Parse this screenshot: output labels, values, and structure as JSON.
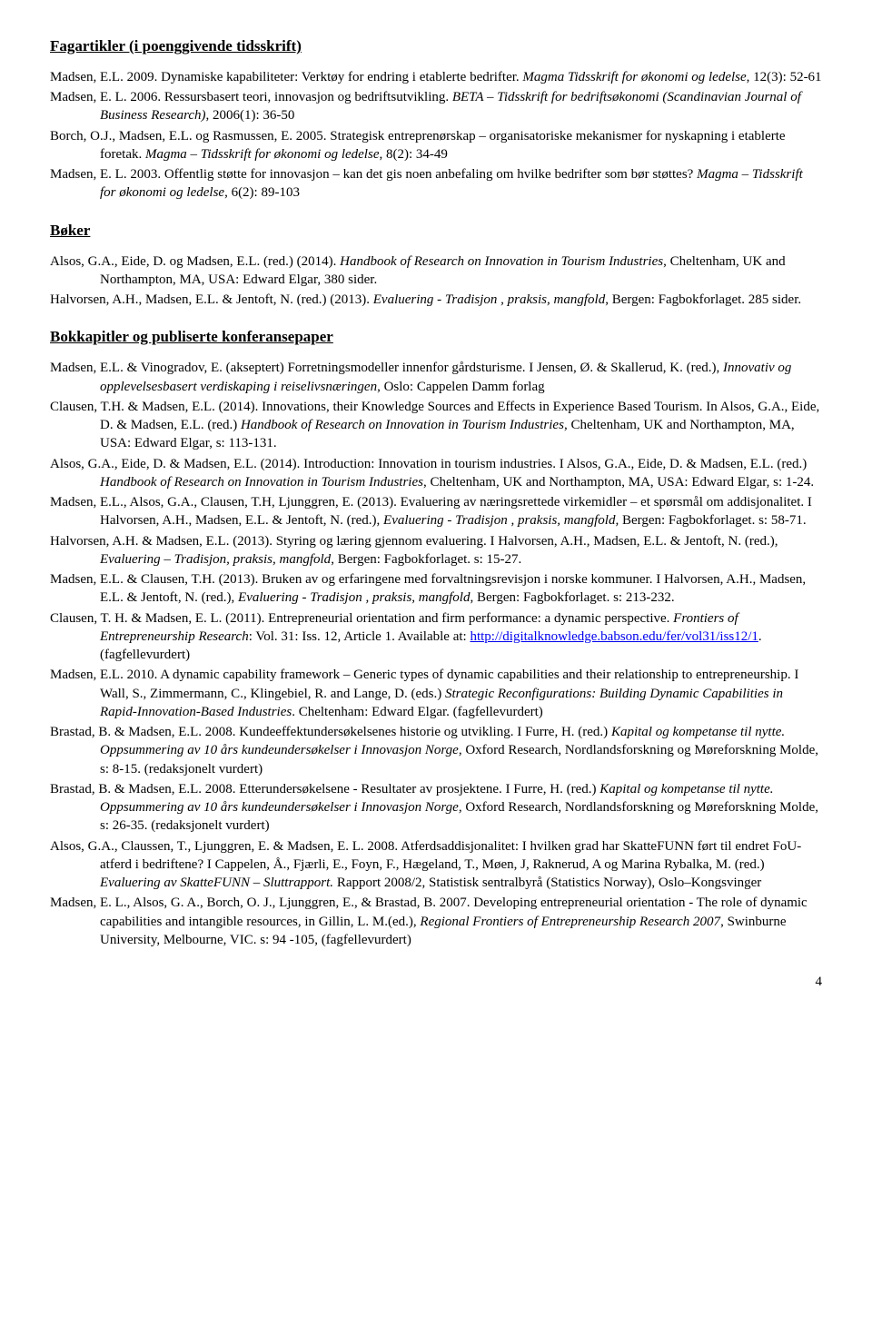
{
  "section1": {
    "heading": "Fagartikler (i poenggivende tidsskrift)",
    "entries": [
      {
        "html": "Madsen, E.L. 2009. Dynamiske kapabiliteter: Verktøy for endring i etablerte bedrifter. <span class='italic'>Magma Tidsskrift for økonomi og ledelse</span>, 12(3): 52-61"
      },
      {
        "html": "Madsen, E. L. 2006. Ressursbasert teori, innovasjon og bedriftsutvikling. <span class='italic'>BETA – Tidsskrift for bedriftsøkonomi (Scandinavian Journal of Business Research)</span>, 2006(1): 36-50"
      },
      {
        "html": "Borch, O.J., Madsen, E.L. og Rasmussen, E. 2005. Strategisk entreprenørskap – organisatoriske mekanismer for nyskapning i etablerte foretak. <span class='italic'>Magma – Tidsskrift for økonomi og ledelse</span>, 8(2): 34-49"
      },
      {
        "html": "Madsen, E. L. 2003. Offentlig støtte for innovasjon – kan det gis noen anbefaling om hvilke bedrifter som bør støttes? <span class='italic'>Magma – Tidsskrift for økonomi og ledelse</span>, 6(2): 89-103"
      }
    ]
  },
  "section2": {
    "heading": "Bøker",
    "entries": [
      {
        "html": "Alsos, G.A., Eide, D. og Madsen, E.L. (red.) (2014). <span class='italic'>Handbook of Research on Innovation in Tourism Industries</span>, Cheltenham, UK and Northampton, MA, USA: Edward Elgar, 380 sider."
      },
      {
        "html": "Halvorsen, A.H., Madsen, E.L. & Jentoft, N. (red.) (2013). <span class='italic'>Evaluering - Tradisjon , praksis, mangfold</span>, Bergen: Fagbokforlaget. 285 sider."
      }
    ]
  },
  "section3": {
    "heading": "Bokkapitler og publiserte konferansepaper",
    "entries": [
      {
        "html": "Madsen, E.L. & Vinogradov, E. (akseptert) Forretningsmodeller innenfor gårdsturisme. I Jensen, Ø. & Skallerud, K. (red.), <span class='italic'>Innovativ og opplevelsesbasert verdiskaping i reiselivsnæringen</span>, Oslo: Cappelen Damm forlag"
      },
      {
        "html": "Clausen, T.H. & Madsen, E.L. (2014). Innovations, their Knowledge Sources and Effects in Experience Based Tourism. In Alsos, G.A., Eide, D. & Madsen, E.L. (red.) <span class='italic'>Handbook of Research on Innovation in Tourism Industries</span>, Cheltenham, UK and Northampton, MA, USA: Edward Elgar, s: 113-131."
      },
      {
        "html": "Alsos, G.A., Eide, D. & Madsen, E.L. (2014). Introduction: Innovation in tourism industries. I Alsos, G.A., Eide, D. & Madsen, E.L. (red.) <span class='italic'>Handbook of Research on Innovation in Tourism Industries</span>, Cheltenham, UK and Northampton, MA, USA: Edward Elgar, s: 1-24."
      },
      {
        "html": "Madsen, E.L., Alsos, G.A., Clausen, T.H, Ljunggren, E. (2013). Evaluering av næringsrettede virkemidler – et spørsmål om addisjonalitet.  I Halvorsen, A.H., Madsen, E.L. & Jentoft, N. (red.), <span class='italic'>Evaluering - Tradisjon , praksis, mangfold,</span> Bergen: Fagbokforlaget. s: 58-71."
      },
      {
        "html": "Halvorsen, A.H. & Madsen, E.L. (2013). Styring og læring gjennom evaluering. I Halvorsen, A.H., Madsen, E.L. & Jentoft, N. (red.), <span class='italic'>Evaluering – Tradisjon, praksis, mangfold</span>, Bergen: Fagbokforlaget. s: 15-27."
      },
      {
        "html": "Madsen, E.L. & Clausen, T.H. (2013). Bruken av og erfaringene med forvaltningsrevisjon i norske kommuner. I Halvorsen, A.H., Madsen, E.L. & Jentoft, N. (red.), <span class='italic'>Evaluering - Tradisjon , praksis, mangfold</span>, Bergen: Fagbokforlaget. s: 213-232."
      },
      {
        "html": "Clausen, T. H. & Madsen, E. L. (2011). Entrepreneurial orientation and firm performance: a dynamic perspective. <span class='italic'>Frontiers of Entrepreneurship Research</span>: Vol. 31: Iss. 12, Article 1. Available at: <a class='link' href='#'>http://digitalknowledge.babson.edu/fer/vol31/iss12/1</a>. (fagfellevurdert)"
      },
      {
        "html": "Madsen, E.L. 2010. A dynamic capability framework – Generic types of dynamic capabilities and their relationship to entrepreneurship. I Wall, S., Zimmermann, C., Klingebiel, R. and Lange, D. (eds.) <span class='italic'>Strategic Reconfigurations: Building Dynamic Capabilities in Rapid-Innovation-Based Industries</span>. Cheltenham: Edward Elgar. (fagfellevurdert)"
      },
      {
        "html": "Brastad, B. & Madsen, E.L. 2008. Kundeeffektundersøkelsenes historie og utvikling. I Furre, H. (red.) <span class='italic'>Kapital og kompetanse til nytte. Oppsummering av 10 års kundeundersøkelser i Innovasjon Norge</span>, Oxford Research, Nordlandsforskning og Møreforskning Molde, s: 8-15. (redaksjonelt vurdert)"
      },
      {
        "html": "Brastad, B. & Madsen, E.L. 2008. Etterundersøkelsene - Resultater av prosjektene. I Furre, H. (red.) <span class='italic'>Kapital og kompetanse til nytte. Oppsummering av 10 års kundeundersøkelser i Innovasjon Norge</span>, Oxford Research, Nordlandsforskning og Møreforskning Molde, s: 26-35. (redaksjonelt vurdert)"
      },
      {
        "html": "Alsos, G.A., Claussen, T., Ljunggren, E. & Madsen, E. L. 2008. Atferdsaddisjonalitet: I hvilken grad har SkatteFUNN ført til endret FoU-atferd i bedriftene? I Cappelen, Å., Fjærli, E., Foyn, F., Hægeland, T., Møen, J, Raknerud, A og Marina Rybalka, M. (red.) <span class='italic'>Evaluering av SkatteFUNN – Sluttrapport.</span> Rapport 2008/2, Statistisk sentralbyrå (Statistics Norway), Oslo–Kongsvinger"
      },
      {
        "html": "Madsen, E. L., Alsos, G. A., Borch, O. J., Ljunggren, E., & Brastad, B. 2007. Developing entrepreneurial orientation - The role of dynamic capabilities and intangible resources, in Gillin, L. M.(ed.), <span class='italic'>Regional Frontiers of Entrepreneurship Research 2007</span>, Swinburne University, Melbourne, VIC. s: 94 -105, (fagfellevurdert)"
      }
    ]
  },
  "pageNumber": "4"
}
